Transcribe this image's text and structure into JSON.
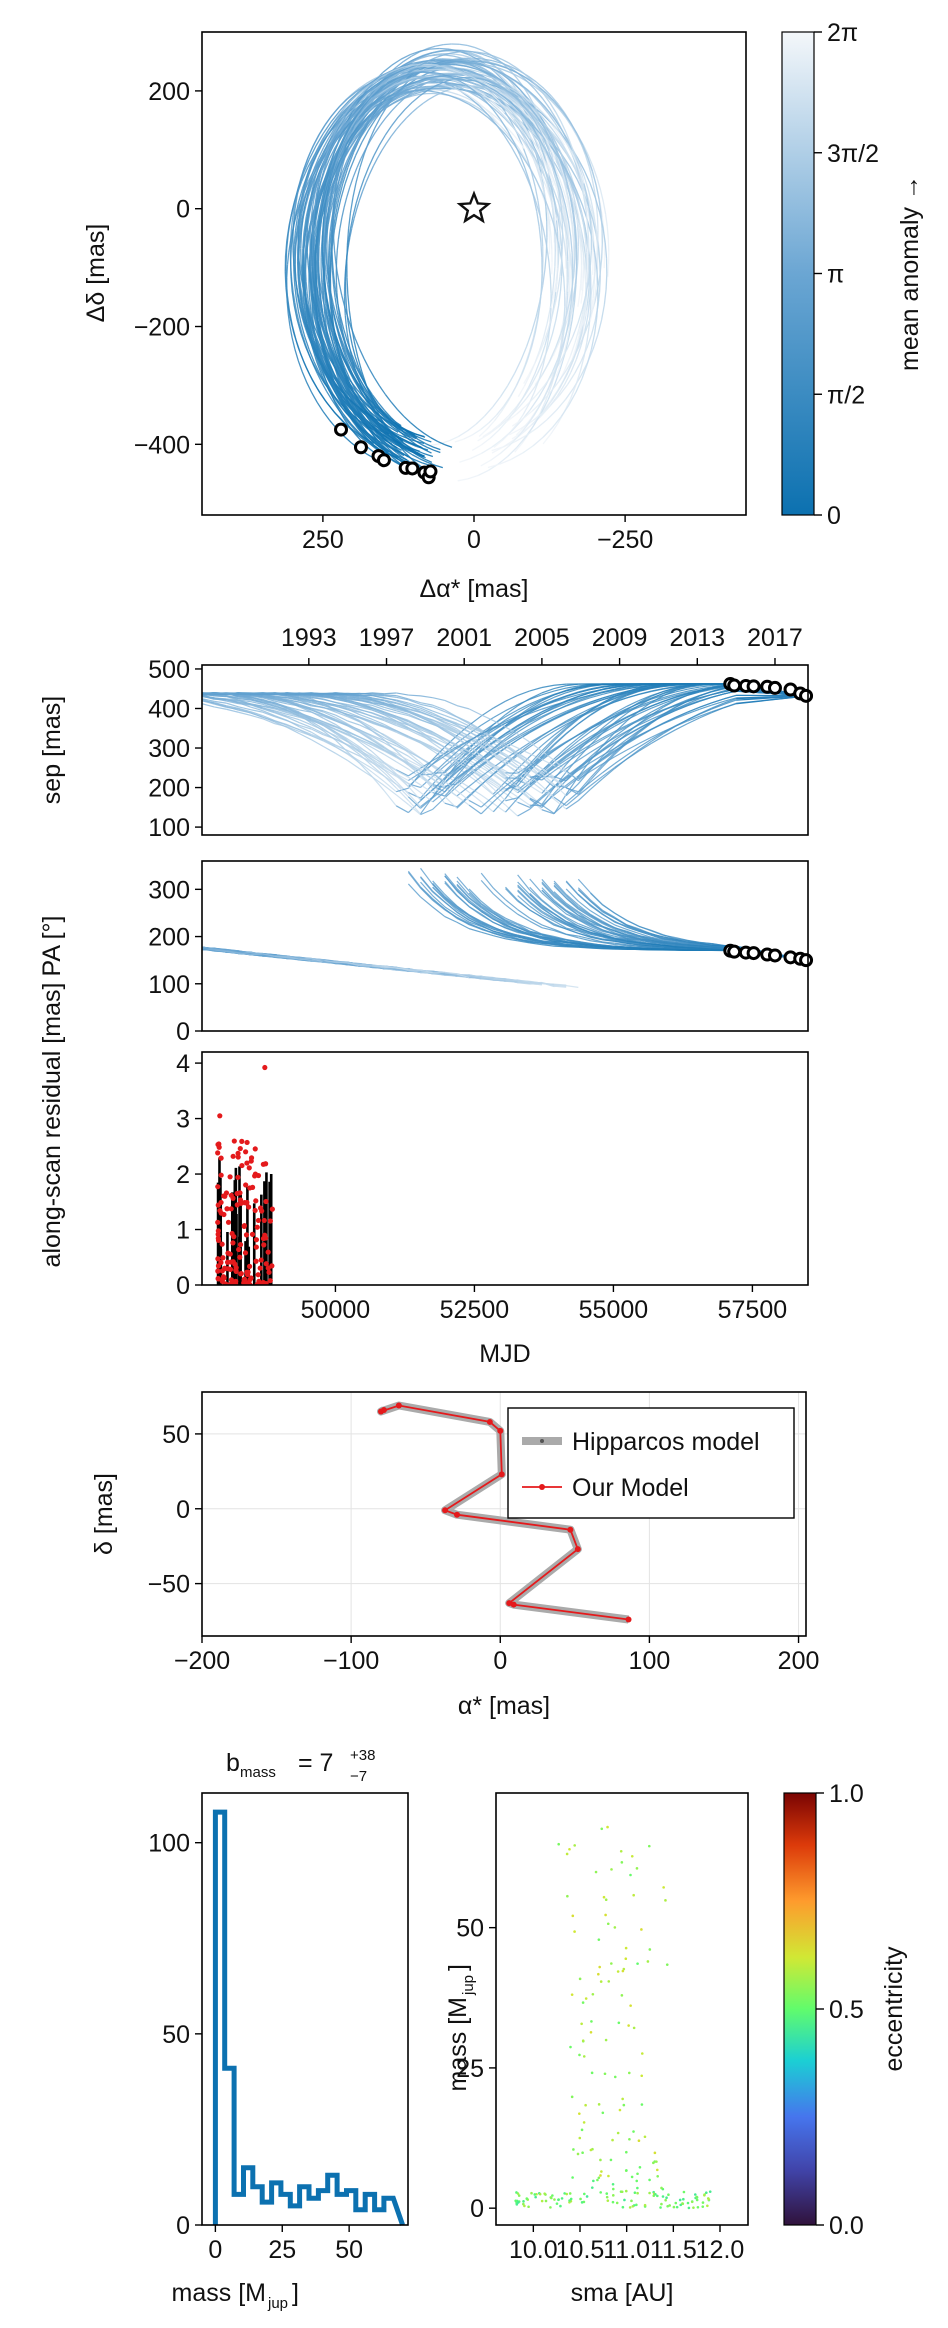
{
  "chart_data": [
    {
      "id": "orbit",
      "type": "line",
      "xlabel": "Δα* [mas]",
      "ylabel": "Δδ [mas]",
      "xlim": [
        450,
        -450
      ],
      "ylim": [
        -520,
        300
      ],
      "xticks": [
        {
          "v": 250,
          "t": "250"
        },
        {
          "v": 0,
          "t": "0"
        },
        {
          "v": -250,
          "t": "−250"
        }
      ],
      "yticks": [
        {
          "v": 200,
          "t": "200"
        },
        {
          "v": 0,
          "t": "0"
        },
        {
          "v": -200,
          "t": "−200"
        },
        {
          "v": -400,
          "t": "−400"
        }
      ],
      "star": {
        "x": 0,
        "y": 0
      },
      "orbit_center": {
        "x": 48,
        "y": -95
      },
      "orbit_semi_axes": {
        "ax": 215,
        "ay": 345
      },
      "observed_points": [
        {
          "x": 220,
          "y": -375
        },
        {
          "x": 187,
          "y": -405
        },
        {
          "x": 158,
          "y": -420
        },
        {
          "x": 149,
          "y": -427
        },
        {
          "x": 113,
          "y": -440
        },
        {
          "x": 102,
          "y": -441
        },
        {
          "x": 82,
          "y": -448
        },
        {
          "x": 75,
          "y": -456
        },
        {
          "x": 72,
          "y": -446
        }
      ],
      "colorbar": {
        "label": "mean anomaly →",
        "ticks": [
          {
            "v": 0,
            "t": "0"
          },
          {
            "v": 0.25,
            "t": "π/2"
          },
          {
            "v": 0.5,
            "t": "π"
          },
          {
            "v": 0.75,
            "t": "3π/2"
          },
          {
            "v": 1,
            "t": "2π"
          }
        ],
        "color_low": "#0c71b0",
        "color_high": "#f4f7fa"
      }
    },
    {
      "id": "sep",
      "type": "line",
      "ylabel": "sep [mas]",
      "top_axis_ticks": [
        "1993",
        "1997",
        "2001",
        "2005",
        "2009",
        "2013",
        "2017"
      ],
      "top_axis_years": [
        1993,
        1997,
        2001,
        2005,
        2009,
        2013,
        2017
      ],
      "xlim_year": [
        1987.5,
        2018.7
      ],
      "ylim": [
        80,
        510
      ],
      "yticks": [
        {
          "v": 500,
          "t": "500"
        },
        {
          "v": 400,
          "t": "400"
        },
        {
          "v": 300,
          "t": "300"
        },
        {
          "v": 200,
          "t": "200"
        },
        {
          "v": 100,
          "t": "100"
        }
      ],
      "observed_points": [
        {
          "yr": 2014.7,
          "v": 462
        },
        {
          "yr": 2014.9,
          "v": 458
        },
        {
          "yr": 2015.5,
          "v": 457
        },
        {
          "yr": 2015.9,
          "v": 456
        },
        {
          "yr": 2016.6,
          "v": 455
        },
        {
          "yr": 2017.0,
          "v": 452
        },
        {
          "yr": 2017.8,
          "v": 448
        },
        {
          "yr": 2018.3,
          "v": 438
        },
        {
          "yr": 2018.6,
          "v": 432
        }
      ]
    },
    {
      "id": "pa",
      "type": "line",
      "ylabel": "PA [°]",
      "xlim_year": [
        1987.5,
        2018.7
      ],
      "ylim": [
        0,
        360
      ],
      "yticks": [
        {
          "v": 300,
          "t": "300"
        },
        {
          "v": 200,
          "t": "200"
        },
        {
          "v": 100,
          "t": "100"
        },
        {
          "v": 0,
          "t": "0"
        }
      ],
      "observed_points": [
        {
          "yr": 2014.7,
          "v": 170
        },
        {
          "yr": 2014.9,
          "v": 168
        },
        {
          "yr": 2015.5,
          "v": 166
        },
        {
          "yr": 2015.9,
          "v": 165
        },
        {
          "yr": 2016.6,
          "v": 162
        },
        {
          "yr": 2017.0,
          "v": 160
        },
        {
          "yr": 2017.8,
          "v": 156
        },
        {
          "yr": 2018.3,
          "v": 153
        },
        {
          "yr": 2018.6,
          "v": 150
        }
      ]
    },
    {
      "id": "residual",
      "type": "scatter",
      "ylabel": "along-scan residual [mas]",
      "xlabel": "MJD",
      "xlim": [
        47600,
        58500
      ],
      "ylim": [
        0,
        4.2
      ],
      "xticks": [
        {
          "v": 50000,
          "t": "50000"
        },
        {
          "v": 52500,
          "t": "52500"
        },
        {
          "v": 55000,
          "t": "55000"
        },
        {
          "v": 57500,
          "t": "57500"
        }
      ],
      "yticks": [
        {
          "v": 4,
          "t": "4"
        },
        {
          "v": 3,
          "t": "3"
        },
        {
          "v": 2,
          "t": "2"
        },
        {
          "v": 1,
          "t": "1"
        },
        {
          "v": 0,
          "t": "0"
        }
      ],
      "mjd_range": [
        47880,
        48880
      ],
      "outlier": {
        "x": 48730,
        "y": 3.92
      },
      "outlier2": {
        "x": 47920,
        "y": 3.05
      }
    },
    {
      "id": "hipparcos",
      "type": "line",
      "xlabel": "α* [mas]",
      "ylabel": "δ [mas]",
      "xlim": [
        -200,
        205
      ],
      "ylim": [
        -85,
        78
      ],
      "xticks": [
        {
          "v": -200,
          "t": "−200"
        },
        {
          "v": -100,
          "t": "−100"
        },
        {
          "v": 0,
          "t": "0"
        },
        {
          "v": 100,
          "t": "100"
        },
        {
          "v": 200,
          "t": "200"
        }
      ],
      "yticks": [
        {
          "v": 50,
          "t": "50"
        },
        {
          "v": 0,
          "t": "0"
        },
        {
          "v": -50,
          "t": "−50"
        }
      ],
      "legend": [
        {
          "name": "Hipparcos model",
          "color": "#aaaaaa"
        },
        {
          "name": "Our Model",
          "color": "#e41a1c"
        }
      ],
      "track": [
        {
          "x": 86,
          "y": -74
        },
        {
          "x": 9,
          "y": -64
        },
        {
          "x": 6,
          "y": -63
        },
        {
          "x": 52,
          "y": -27
        },
        {
          "x": 47,
          "y": -14
        },
        {
          "x": -29,
          "y": -4
        },
        {
          "x": -37,
          "y": -1
        },
        {
          "x": 1,
          "y": 23
        },
        {
          "x": 0,
          "y": 52
        },
        {
          "x": -7,
          "y": 58
        },
        {
          "x": -68,
          "y": 69
        },
        {
          "x": -80,
          "y": 65
        },
        {
          "x": -78,
          "y": 66
        }
      ]
    },
    {
      "id": "mass_hist",
      "type": "bar",
      "title_main": "b",
      "title_sub": "mass",
      "title_eq": "= 7",
      "title_sup": "+38",
      "title_lower": "−7",
      "xlabel_main": "mass [M",
      "xlabel_sub": "jup",
      "xlabel_end": "]",
      "xlim": [
        -5,
        72
      ],
      "ylim": [
        0,
        113
      ],
      "xticks": [
        {
          "v": 0,
          "t": "0"
        },
        {
          "v": 25,
          "t": "25"
        },
        {
          "v": 50,
          "t": "50"
        }
      ],
      "yticks": [
        {
          "v": 100,
          "t": "100"
        },
        {
          "v": 50,
          "t": "50"
        },
        {
          "v": 0,
          "t": "0"
        }
      ],
      "bin_edges": [
        0,
        3.5,
        7,
        10.5,
        14,
        17.5,
        21,
        24.5,
        28,
        31.5,
        35,
        38.5,
        42,
        45.5,
        49,
        52.5,
        56,
        59.5,
        63,
        66.5
      ],
      "counts": [
        108,
        41,
        8,
        15,
        10,
        6,
        11,
        8,
        5,
        10,
        7,
        9,
        13,
        8,
        9,
        4,
        8,
        4,
        7
      ],
      "color": "#0c71b0"
    },
    {
      "id": "mass_sma",
      "type": "scatter",
      "xlabel": "sma [AU]",
      "ylabel_main": "mass [M",
      "ylabel_sub": "jup",
      "ylabel_end": "]",
      "xlim": [
        9.6,
        12.3
      ],
      "ylim": [
        -3,
        74
      ],
      "xticks": [
        {
          "v": 10.0,
          "t": "10.0"
        },
        {
          "v": 10.5,
          "t": "10.5"
        },
        {
          "v": 11.0,
          "t": "11.0"
        },
        {
          "v": 11.5,
          "t": "11.5"
        },
        {
          "v": 12.0,
          "t": "12.0"
        }
      ],
      "yticks": [
        {
          "v": 50,
          "t": "50"
        },
        {
          "v": 25,
          "t": "25"
        },
        {
          "v": 0,
          "t": "0"
        }
      ],
      "colorbar": {
        "label": "eccentricity",
        "ticks": [
          {
            "v": 0,
            "t": "0.0"
          },
          {
            "v": 0.5,
            "t": "0.5"
          },
          {
            "v": 1,
            "t": "1.0"
          }
        ]
      }
    }
  ]
}
